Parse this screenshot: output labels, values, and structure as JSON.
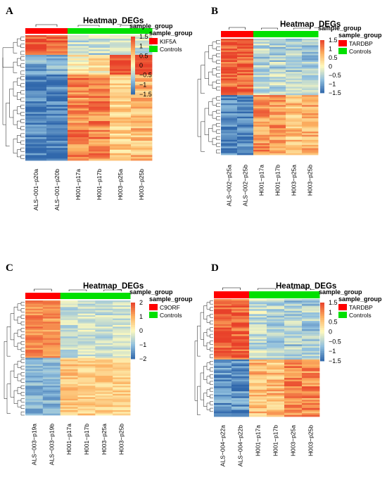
{
  "chart_data": [
    {
      "type": "heatmap",
      "panel": "A",
      "title": "Heatmap_DEGs",
      "columns": [
        "ALS−001−p20a",
        "ALS−001−p20b",
        "H001−p17a",
        "H001−p17b",
        "H003−p25a",
        "H003−p25b"
      ],
      "column_groups": [
        "KIF5A",
        "KIF5A",
        "Controls",
        "Controls",
        "Controls",
        "Controls"
      ],
      "legend_title": "sample_group",
      "groups": [
        {
          "name": "KIF5A",
          "color": "#ff0000"
        },
        {
          "name": "Controls",
          "color": "#00e000"
        }
      ],
      "color_scale": {
        "ticks": [
          "1.5",
          "1",
          "0.5",
          "0",
          "−0.5",
          "−1",
          "−1.5"
        ],
        "min": -1.5,
        "max": 1.5
      },
      "row_blocks": [
        {
          "fraction": 0.16,
          "values": [
            1.3,
            1.3,
            -0.4,
            -0.4,
            -0.3,
            -0.3
          ]
        },
        {
          "fraction": 0.16,
          "values": [
            -0.9,
            -0.9,
            0.2,
            0.2,
            1.4,
            1.4
          ]
        },
        {
          "fraction": 0.68,
          "values": [
            -1.3,
            -1.3,
            1.0,
            1.0,
            0.5,
            0.6
          ]
        }
      ]
    },
    {
      "type": "heatmap",
      "panel": "B",
      "title": "Heatmap_DEGs",
      "columns": [
        "ALS−002−p25a",
        "ALS−002−p25b",
        "H001−p17a",
        "H001−p17b",
        "H003−p25a",
        "H003−p25b"
      ],
      "column_groups": [
        "TARDBP",
        "TARDBP",
        "Controls",
        "Controls",
        "Controls",
        "Controls"
      ],
      "legend_title": "sample_group",
      "groups": [
        {
          "name": "TARDBP",
          "color": "#ff0000"
        },
        {
          "name": "Controls",
          "color": "#00e000"
        }
      ],
      "color_scale": {
        "ticks": [
          "1.5",
          "1",
          "0.5",
          "0",
          "−0.5",
          "−1",
          "−1.5"
        ],
        "min": -1.5,
        "max": 1.5
      },
      "row_blocks": [
        {
          "fraction": 0.48,
          "values": [
            1.3,
            1.3,
            -0.5,
            -0.5,
            -0.6,
            -0.6
          ]
        },
        {
          "fraction": 0.52,
          "values": [
            -1.2,
            -1.2,
            0.9,
            0.9,
            0.6,
            0.7
          ]
        }
      ]
    },
    {
      "type": "heatmap",
      "panel": "C",
      "title": "Heatmap_DEGs",
      "columns": [
        "ALS−003−p19a",
        "ALS−003−p19b",
        "H001−p17a",
        "H001−p17b",
        "H003−p25a",
        "H003−p25b"
      ],
      "column_groups": [
        "C9ORF",
        "C9ORF",
        "Controls",
        "Controls",
        "Controls",
        "Controls"
      ],
      "legend_title": "sample_group",
      "groups": [
        {
          "name": "C9ORF",
          "color": "#ff0000"
        },
        {
          "name": "Controls",
          "color": "#00e000"
        }
      ],
      "color_scale": {
        "ticks": [
          "2",
          "1",
          "0",
          "−1",
          "−2"
        ],
        "min": -2,
        "max": 2
      },
      "row_blocks": [
        {
          "fraction": 0.5,
          "values": [
            1.3,
            1.2,
            -0.5,
            -0.4,
            -0.5,
            -0.4
          ]
        },
        {
          "fraction": 0.5,
          "values": [
            -1.1,
            -1.1,
            0.7,
            0.6,
            0.6,
            0.6
          ]
        }
      ]
    },
    {
      "type": "heatmap",
      "panel": "D",
      "title": "Heatmap_DEGs",
      "columns": [
        "ALS−004−p22a",
        "ALS−004−p22b",
        "H001−p17a",
        "H001−p17b",
        "H003−p25a",
        "H003−p25b"
      ],
      "column_groups": [
        "TARDBP",
        "TARDBP",
        "Controls",
        "Controls",
        "Controls",
        "Controls"
      ],
      "legend_title": "sample_group",
      "groups": [
        {
          "name": "TARDBP",
          "color": "#ff0000"
        },
        {
          "name": "Controls",
          "color": "#00e000"
        }
      ],
      "color_scale": {
        "ticks": [
          "1.5",
          "1",
          "0.5",
          "0",
          "−0.5",
          "−1",
          "−1.5"
        ],
        "min": -1.5,
        "max": 1.5
      },
      "row_blocks": [
        {
          "fraction": 0.52,
          "values": [
            1.3,
            1.3,
            -0.4,
            -0.5,
            -0.6,
            -0.6
          ]
        },
        {
          "fraction": 0.48,
          "values": [
            -1.1,
            -1.1,
            0.6,
            0.6,
            1.0,
            1.0
          ]
        }
      ]
    }
  ]
}
